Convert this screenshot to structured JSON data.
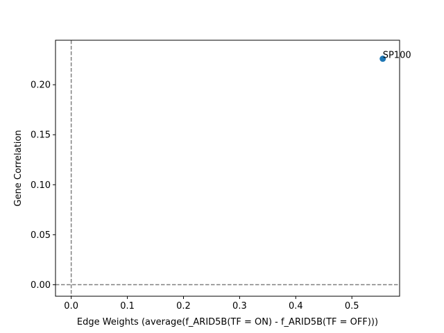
{
  "chart_data": {
    "type": "scatter",
    "title": "",
    "xlabel": "Edge Weights (average(f_ARID5B(TF = ON) - f_ARID5B(TF = OFF)))",
    "ylabel": "Gene Correlation",
    "xlim": [
      -0.028,
      0.585
    ],
    "ylim": [
      -0.0115,
      0.2445
    ],
    "xticks": [
      0.0,
      0.1,
      0.2,
      0.3,
      0.4,
      0.5
    ],
    "xtick_labels": [
      "0.0",
      "0.1",
      "0.2",
      "0.3",
      "0.4",
      "0.5"
    ],
    "yticks": [
      0.0,
      0.05,
      0.1,
      0.15,
      0.2
    ],
    "ytick_labels": [
      "0.00",
      "0.05",
      "0.10",
      "0.15",
      "0.20"
    ],
    "reference_lines": [
      {
        "axis": "x",
        "value": 0.0,
        "style": "dashed",
        "color": "#808080"
      },
      {
        "axis": "y",
        "value": 0.0,
        "style": "dashed",
        "color": "#808080"
      }
    ],
    "points": [
      {
        "x": 0.555,
        "y": 0.226,
        "label": "SP100"
      }
    ],
    "marker_color": "#1f77b4",
    "grid": false
  }
}
